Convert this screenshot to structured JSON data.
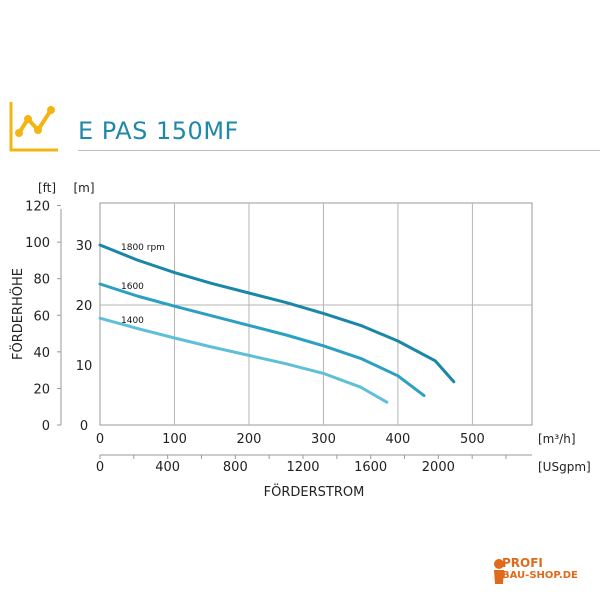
{
  "header": {
    "title": "E PAS 150MF",
    "icon": "line-chart-icon",
    "icon_color": "#f2b512",
    "title_color": "#1f8aa8"
  },
  "chart_data": {
    "type": "line",
    "title": "E PAS 150MF",
    "ylabel": "FÖRDERHÖHE",
    "xlabel": "FÖRDERSTROM",
    "y_unit_m": "[m]",
    "y_unit_ft": "[ft]",
    "x_unit_m3h": "[m³/h]",
    "x_unit_usgpm": "[USgpm]",
    "xlim": [
      0,
      580
    ],
    "ylim_m": [
      0,
      37
    ],
    "yticks_m": [
      0,
      10,
      20,
      30
    ],
    "yticks_ft": [
      0,
      20,
      40,
      60,
      80,
      100,
      120
    ],
    "xticks_m3h": [
      0,
      100,
      200,
      300,
      400,
      500
    ],
    "xticks_usgpm": [
      0,
      400,
      800,
      1200,
      1600,
      2000
    ],
    "grid": true,
    "series": [
      {
        "name": "1800 rpm",
        "color": "#1a87a9",
        "x": [
          0,
          50,
          100,
          150,
          200,
          250,
          300,
          350,
          400,
          450,
          475
        ],
        "y": [
          30,
          27.5,
          25.4,
          23.6,
          22.0,
          20.4,
          18.6,
          16.6,
          14.0,
          10.7,
          7.2
        ]
      },
      {
        "name": "1600",
        "color": "#2ba0c3",
        "x": [
          0,
          50,
          100,
          150,
          200,
          250,
          300,
          350,
          400,
          435
        ],
        "y": [
          23.5,
          21.5,
          19.8,
          18.2,
          16.6,
          15.0,
          13.2,
          11.1,
          8.2,
          4.9
        ]
      },
      {
        "name": "1400",
        "color": "#5fbfd8",
        "x": [
          0,
          50,
          100,
          150,
          200,
          250,
          300,
          350,
          385
        ],
        "y": [
          17.8,
          16.1,
          14.5,
          13.0,
          11.6,
          10.2,
          8.6,
          6.3,
          3.8
        ]
      }
    ]
  },
  "watermark": {
    "line1": "PROFI",
    "line2": "BAU-SHOP.DE",
    "color": "#e06a1c"
  }
}
